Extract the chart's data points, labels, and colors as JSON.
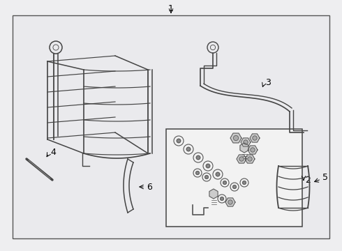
{
  "bg_color": "#eeeef0",
  "box_fill": "#e8e8ec",
  "line_color": "#444444",
  "label_color": "#000000",
  "hw_box_fill": "#f0f0f0",
  "label_fontsize": 9
}
